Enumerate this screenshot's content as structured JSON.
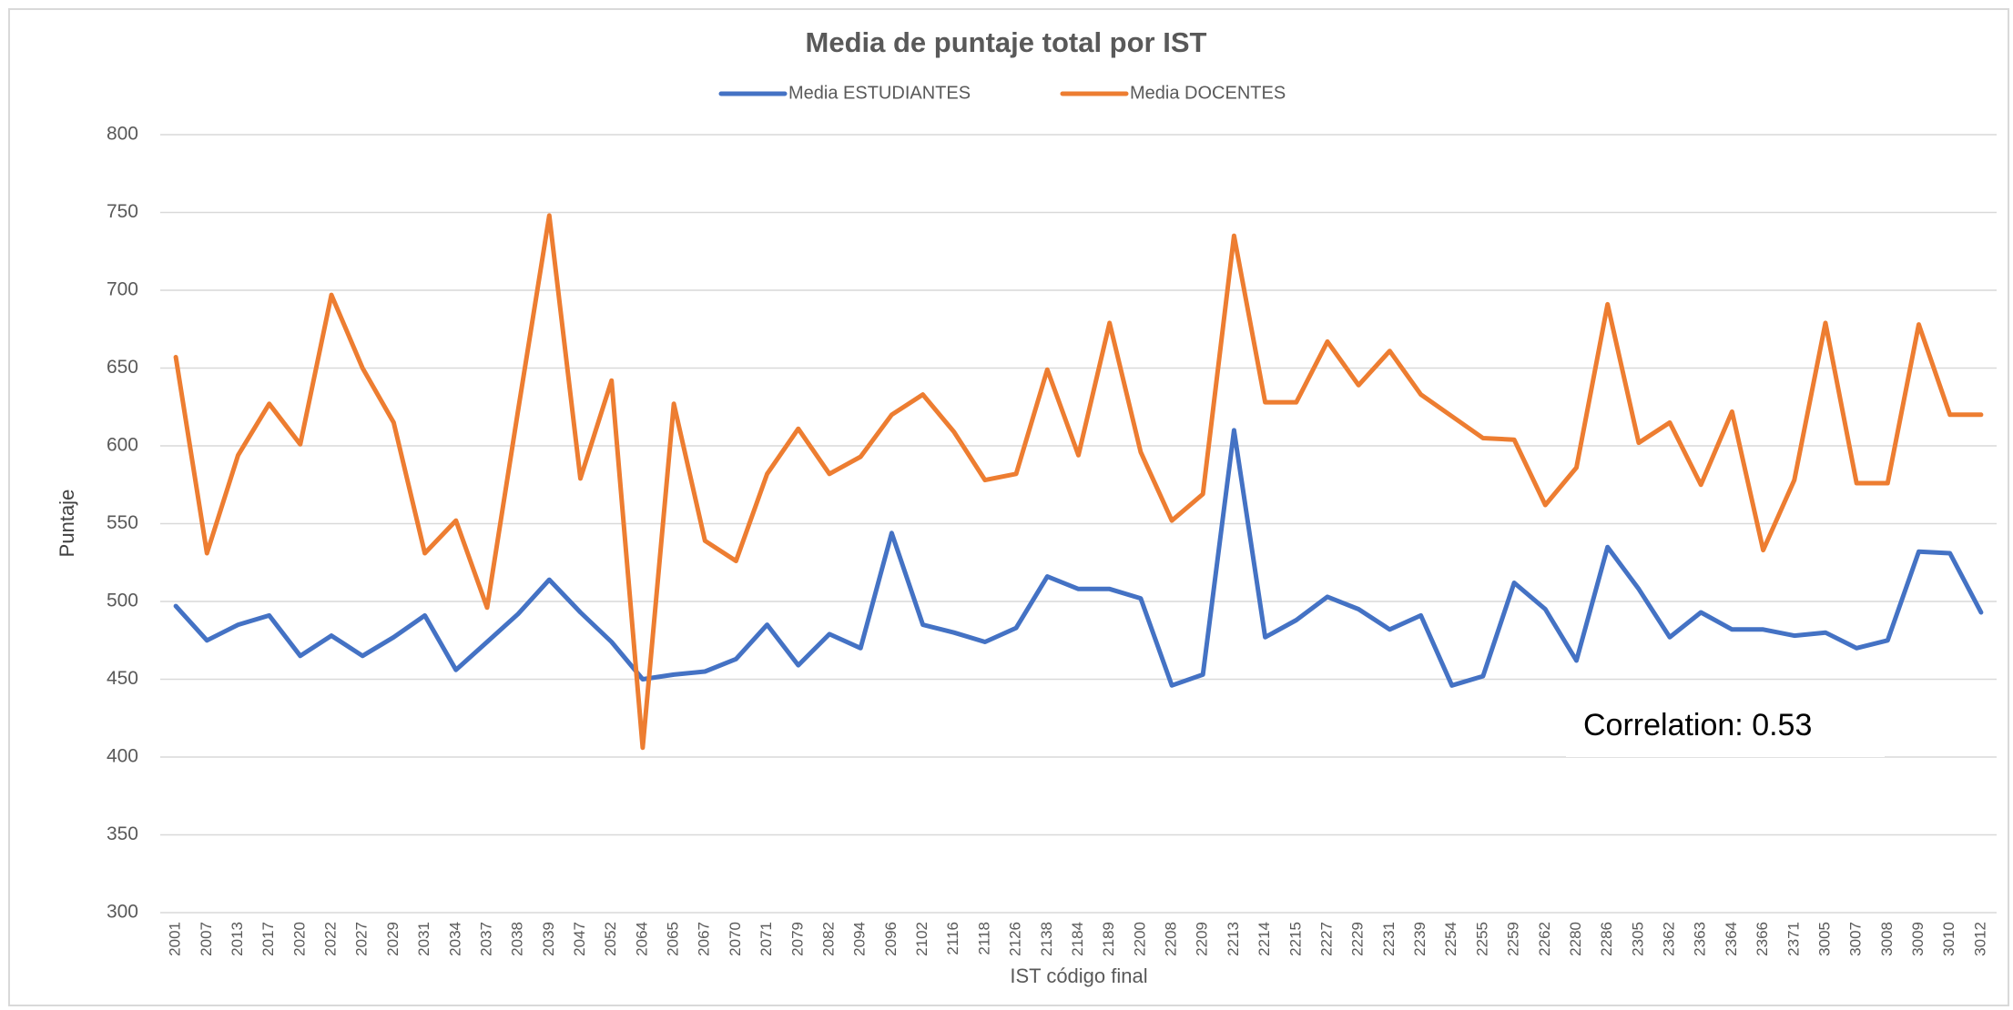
{
  "chart_data": {
    "type": "line",
    "title": "Media de puntaje total por IST",
    "x_label": "IST código final",
    "y_label": "Puntaje",
    "annotation": "Correlation: 0.53",
    "categories": [
      "2001",
      "2007",
      "2013",
      "2017",
      "2020",
      "2022",
      "2027",
      "2029",
      "2031",
      "2034",
      "2037",
      "2038",
      "2039",
      "2047",
      "2052",
      "2064",
      "2065",
      "2067",
      "2070",
      "2071",
      "2079",
      "2082",
      "2094",
      "2096",
      "2102",
      "2116",
      "2118",
      "2126",
      "2138",
      "2184",
      "2189",
      "2200",
      "2208",
      "2209",
      "2213",
      "2214",
      "2215",
      "2227",
      "2229",
      "2231",
      "2239",
      "2254",
      "2255",
      "2259",
      "2262",
      "2280",
      "2286",
      "2305",
      "2362",
      "2363",
      "2364",
      "2366",
      "2371",
      "3005",
      "3007",
      "3008",
      "3009",
      "3010",
      "3012"
    ],
    "series": [
      {
        "name": "Media ESTUDIANTES",
        "color": "#4472c4",
        "values": [
          497,
          475,
          485,
          491,
          465,
          478,
          465,
          477,
          491,
          456,
          474,
          492,
          514,
          493,
          474,
          450,
          453,
          455,
          463,
          485,
          459,
          479,
          470,
          544,
          485,
          480,
          474,
          483,
          516,
          508,
          508,
          502,
          446,
          453,
          610,
          477,
          488,
          503,
          495,
          482,
          491,
          446,
          452,
          512,
          495,
          462,
          535,
          508,
          477,
          493,
          482,
          482,
          478,
          480,
          470,
          475,
          532,
          531,
          493
        ]
      },
      {
        "name": "Media DOCENTES",
        "color": "#ed7d31",
        "values": [
          657,
          531,
          594,
          627,
          601,
          697,
          650,
          615,
          531,
          552,
          496,
          623,
          748,
          579,
          642,
          406,
          627,
          539,
          526,
          582,
          611,
          582,
          593,
          620,
          633,
          609,
          578,
          582,
          649,
          594,
          679,
          596,
          552,
          569,
          735,
          628,
          628,
          667,
          639,
          661,
          633,
          619,
          605,
          604,
          562,
          586,
          691,
          602,
          615,
          575,
          622,
          533,
          578,
          679,
          576,
          576,
          678,
          620,
          620
        ]
      }
    ],
    "ylim": [
      300,
      800
    ],
    "yticks": [
      300,
      350,
      400,
      450,
      500,
      550,
      600,
      650,
      700,
      750,
      800
    ],
    "grid": true,
    "legend": "top"
  }
}
